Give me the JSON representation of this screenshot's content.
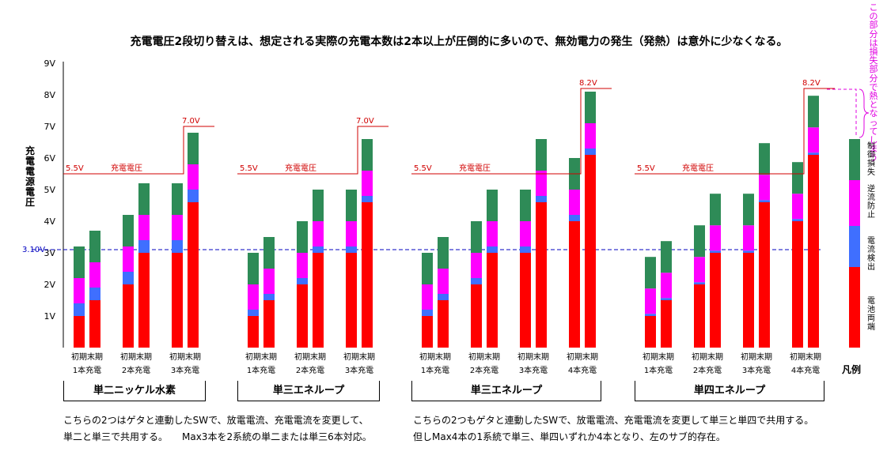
{
  "title": "充電電圧2段切り替えは、想定される実際の充電本数は2本以上が圧倒的に多いので、無効電力の発生（発熱）は意外に少なくなる。",
  "y_axis_label": "充電電源電圧",
  "side_annotation": "この部分は損失部分で熱となってしまう",
  "legend_title": "凡例",
  "legend": [
    {
      "name": "電池両端",
      "color": "#ff0000"
    },
    {
      "name": "電流検出",
      "color": "#3f6fff"
    },
    {
      "name": "逆流防止",
      "color": "#ff00ff"
    },
    {
      "name": "制御損失",
      "color": "#2e8b57"
    }
  ],
  "groups": [
    {
      "name": "単二ニッケル水素"
    },
    {
      "name": "単三エネループ"
    },
    {
      "name": "単三エネループ"
    },
    {
      "name": "単四エネループ"
    }
  ],
  "notes": {
    "left_1": "こちらの2つはゲタと連動したSWで、放電電流、充電電流を変更して、",
    "left_2": "単二と単三で共用する。　　Max3本を2系統の単二または単三6本対応。",
    "right_1": "こちらの2つもゲタと連動したSWで、放電電流、充電電流を変更して単三と単四で共用する。",
    "right_2": "但しMax4本の1系統で単三、単四いずれか4本となり、左のサブ的存在。"
  },
  "chart_data": {
    "type": "bar",
    "stacked": true,
    "y_unit": "V",
    "ylim": [
      0,
      9.5
    ],
    "y_ticks": [
      "1V",
      "2V",
      "3V",
      "4V",
      "5V",
      "6V",
      "7V",
      "8V",
      "9V"
    ],
    "y_tick_values": [
      1,
      2,
      3,
      4,
      5,
      6,
      7,
      8,
      9
    ],
    "reference_line": {
      "value": 3.1,
      "label": "3.10V"
    },
    "stack_order": [
      "電池両端",
      "電流検出",
      "逆流防止",
      "制御損失"
    ],
    "colors": [
      "#ff0000",
      "#3f6fff",
      "#ff00ff",
      "#2e8b57"
    ],
    "bar_labels": [
      "初期",
      "末期"
    ],
    "pair_labels": [
      "1本充電",
      "2本充電",
      "3本充電",
      "4本充電"
    ],
    "supply_label": "充電電圧",
    "panels": [
      {
        "group": "単二ニッケル水素",
        "supply_low": 5.5,
        "supply_low_label": "5.5V",
        "supply_high": 7.0,
        "supply_high_label": "7.0V",
        "pairs": [
          {
            "label": "1本充電",
            "bars": [
              [
                1.0,
                0.4,
                0.8,
                1.0
              ],
              [
                1.5,
                0.4,
                0.8,
                1.0
              ]
            ]
          },
          {
            "label": "2本充電",
            "bars": [
              [
                2.0,
                0.4,
                0.8,
                1.0
              ],
              [
                3.0,
                0.4,
                0.8,
                1.0
              ]
            ]
          },
          {
            "label": "3本充電",
            "bars": [
              [
                3.0,
                0.4,
                0.8,
                1.0
              ],
              [
                4.6,
                0.4,
                0.8,
                1.0
              ]
            ]
          }
        ]
      },
      {
        "group": "単三エネループ",
        "supply_low": 5.5,
        "supply_low_label": "5.5V",
        "supply_high": 7.0,
        "supply_high_label": "7.0V",
        "pairs": [
          {
            "label": "1本充電",
            "bars": [
              [
                1.0,
                0.2,
                0.8,
                1.0
              ],
              [
                1.5,
                0.2,
                0.8,
                1.0
              ]
            ]
          },
          {
            "label": "2本充電",
            "bars": [
              [
                2.0,
                0.2,
                0.8,
                1.0
              ],
              [
                3.0,
                0.2,
                0.8,
                1.0
              ]
            ]
          },
          {
            "label": "3本充電",
            "bars": [
              [
                3.0,
                0.2,
                0.8,
                1.0
              ],
              [
                4.6,
                0.2,
                0.8,
                1.0
              ]
            ]
          }
        ]
      },
      {
        "group": "単三エネループ",
        "supply_low": 5.5,
        "supply_low_label": "5.5V",
        "supply_high": 8.2,
        "supply_high_label": "8.2V",
        "pairs": [
          {
            "label": "1本充電",
            "bars": [
              [
                1.0,
                0.2,
                0.8,
                1.0
              ],
              [
                1.5,
                0.2,
                0.8,
                1.0
              ]
            ]
          },
          {
            "label": "2本充電",
            "bars": [
              [
                2.0,
                0.2,
                0.8,
                1.0
              ],
              [
                3.0,
                0.2,
                0.8,
                1.0
              ]
            ]
          },
          {
            "label": "3本充電",
            "bars": [
              [
                3.0,
                0.2,
                0.8,
                1.0
              ],
              [
                4.6,
                0.2,
                0.8,
                1.0
              ]
            ]
          },
          {
            "label": "4本充電",
            "bars": [
              [
                4.0,
                0.2,
                0.8,
                1.0
              ],
              [
                6.1,
                0.2,
                0.8,
                1.0
              ]
            ]
          }
        ]
      },
      {
        "group": "単四エネループ",
        "supply_low": 5.5,
        "supply_low_label": "5.5V",
        "supply_high": 8.2,
        "supply_high_label": "8.2V",
        "pairs": [
          {
            "label": "1本充電",
            "bars": [
              [
                1.0,
                0.07,
                0.8,
                1.0
              ],
              [
                1.5,
                0.07,
                0.8,
                1.0
              ]
            ]
          },
          {
            "label": "2本充電",
            "bars": [
              [
                2.0,
                0.07,
                0.8,
                1.0
              ],
              [
                3.0,
                0.07,
                0.8,
                1.0
              ]
            ]
          },
          {
            "label": "3本充電",
            "bars": [
              [
                3.0,
                0.07,
                0.8,
                1.0
              ],
              [
                4.6,
                0.07,
                0.8,
                1.0
              ]
            ]
          },
          {
            "label": "4本充電",
            "bars": [
              [
                4.0,
                0.07,
                0.8,
                1.0
              ],
              [
                6.1,
                0.07,
                0.8,
                1.0
              ]
            ]
          }
        ]
      }
    ],
    "legend_bar": [
      2.55,
      1.3,
      1.45,
      1.3
    ]
  }
}
